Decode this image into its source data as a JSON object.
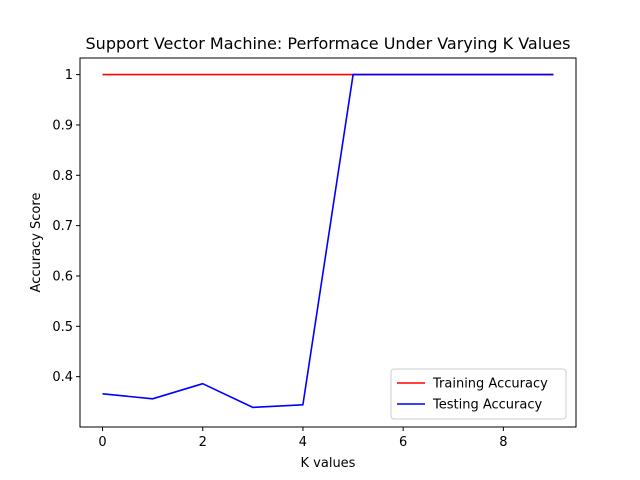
{
  "chart_data": {
    "type": "line",
    "title": "Support Vector Machine: Performace Under Varying K Values",
    "xlabel": "K values",
    "ylabel": "Accuracy Score",
    "xlim": [
      -0.45,
      9.45
    ],
    "ylim": [
      0.3,
      1.033
    ],
    "xticks": [
      0,
      2,
      4,
      6,
      8
    ],
    "yticks": [
      0.4,
      0.5,
      0.6,
      0.7,
      0.8,
      0.9,
      1.0
    ],
    "x": [
      0,
      1,
      2,
      3,
      4,
      5,
      6,
      7,
      8,
      9
    ],
    "series": [
      {
        "name": "Training Accuracy",
        "color": "#ff0000",
        "values": [
          1.0,
          1.0,
          1.0,
          1.0,
          1.0,
          1.0,
          1.0,
          1.0,
          1.0,
          1.0
        ]
      },
      {
        "name": "Testing Accuracy",
        "color": "#0000ff",
        "values": [
          0.366,
          0.356,
          0.386,
          0.339,
          0.344,
          1.0,
          1.0,
          1.0,
          1.0,
          1.0
        ]
      }
    ],
    "legend": "lower right",
    "grid": false
  }
}
